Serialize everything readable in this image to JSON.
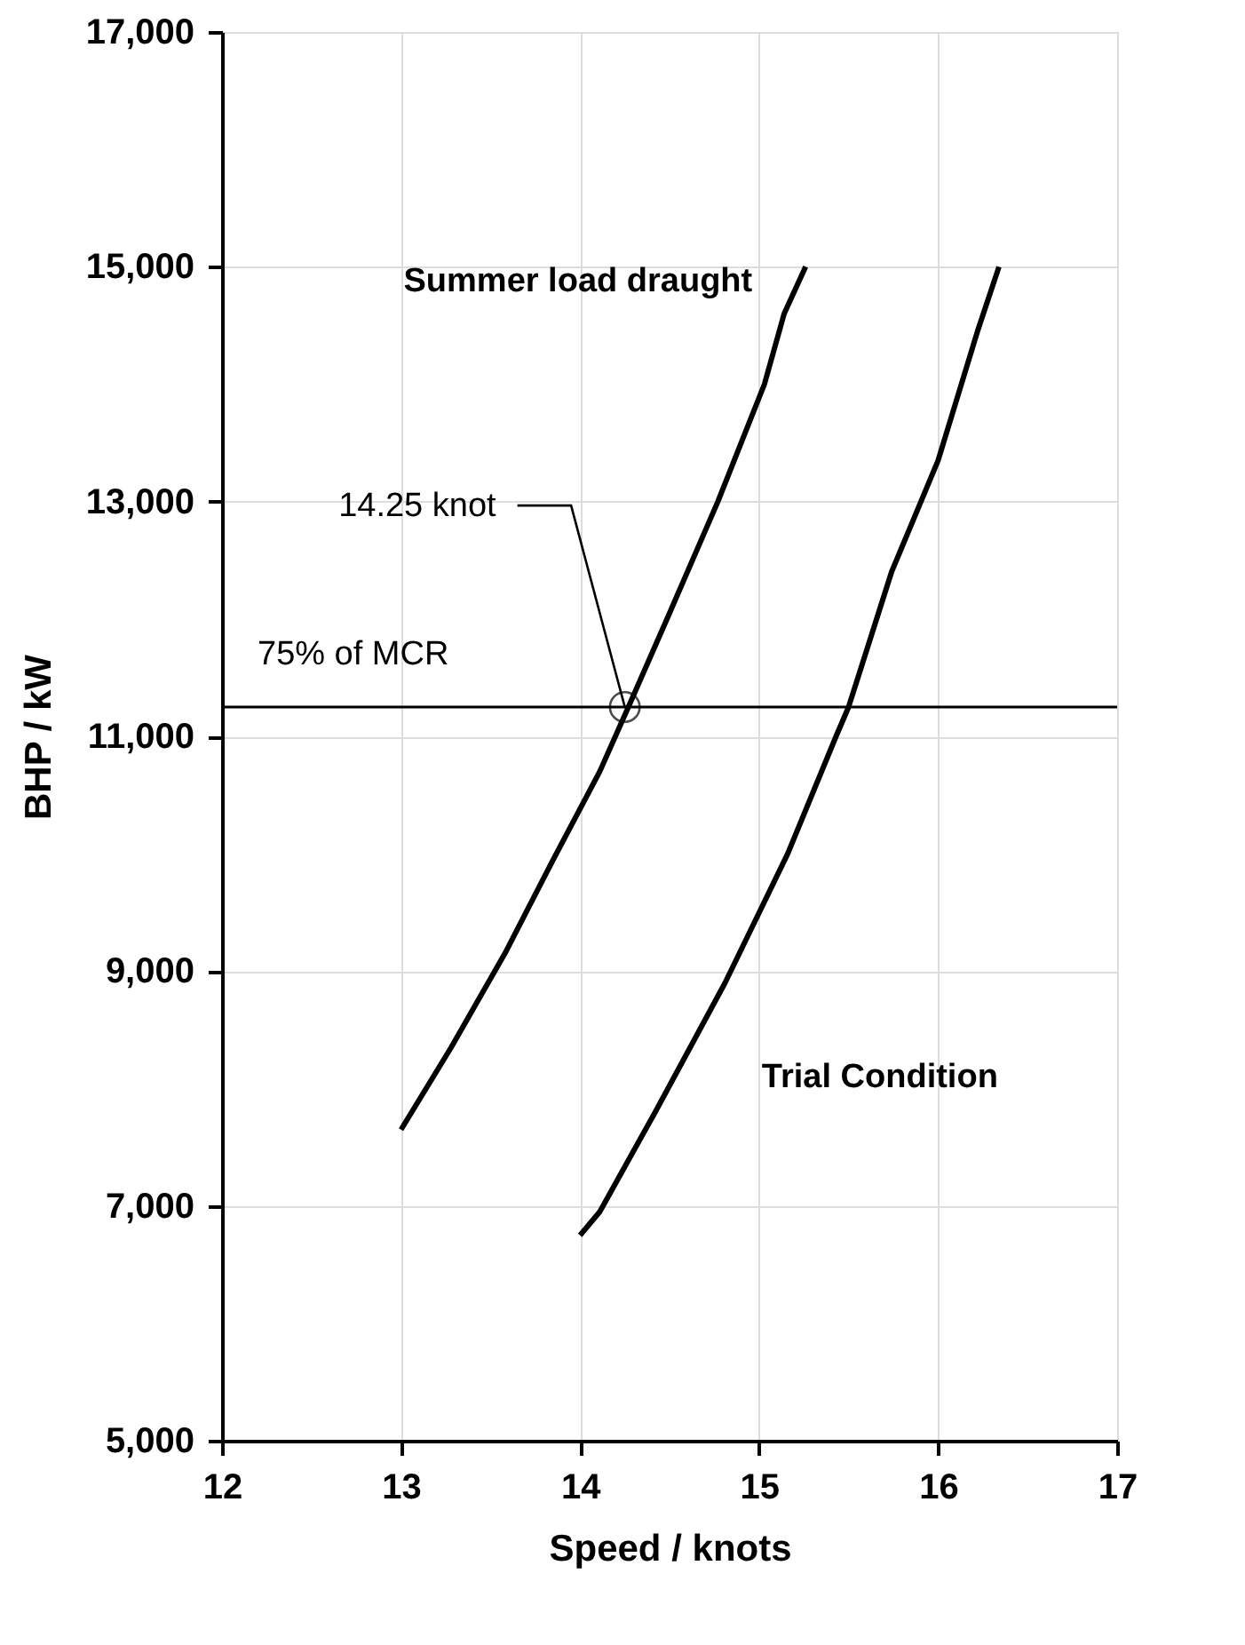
{
  "chart_data": {
    "type": "line",
    "xlabel": "Speed / knots",
    "ylabel": "BHP / kW",
    "xlim": [
      12,
      17
    ],
    "xticks": [
      12,
      13,
      14,
      15,
      16,
      17
    ],
    "ylim": [
      5000,
      17000
    ],
    "yticks": [
      {
        "value": 5000,
        "label": "5,000"
      },
      {
        "value": 7000,
        "label": "7,000"
      },
      {
        "value": 9000,
        "label": "9,000"
      },
      {
        "value": 11000,
        "label": "11,000"
      },
      {
        "value": 13000,
        "label": "13,000"
      },
      {
        "value": 15000,
        "label": "15,000"
      },
      {
        "value": 17000,
        "label": "17,000"
      }
    ],
    "grid": true,
    "legend": false,
    "marker": "none",
    "line_style": "solid",
    "series": [
      {
        "name": "Summer load draught",
        "color": "#000000",
        "x": [
          13.0,
          13.28,
          13.58,
          13.85,
          14.11,
          14.27,
          14.5,
          14.77,
          15.03,
          15.14,
          15.26
        ],
        "values": [
          7650,
          8350,
          9150,
          9950,
          10700,
          11250,
          12050,
          13000,
          14000,
          14600,
          15000
        ]
      },
      {
        "name": "Trial Condition",
        "color": "#000000",
        "x": [
          14.0,
          14.11,
          14.42,
          14.81,
          15.16,
          15.43,
          15.5,
          15.74,
          16.0,
          16.22,
          16.34
        ],
        "values": [
          6750,
          6950,
          7800,
          8900,
          10000,
          11000,
          11250,
          12400,
          13350,
          14450,
          15000
        ]
      }
    ],
    "ref_lines": [
      {
        "axis": "y",
        "value": 11250,
        "label": "75% of MCR",
        "color": "#000000"
      }
    ],
    "annotations": [
      {
        "text": "14.25 knot",
        "x": 14.25,
        "y": 11250
      }
    ]
  }
}
